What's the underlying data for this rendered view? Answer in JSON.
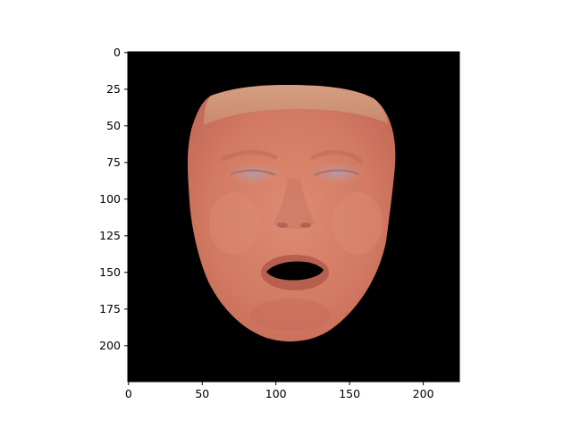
{
  "figure": {
    "type": "image-display",
    "description_free": true,
    "x_axis": {
      "label": "",
      "range": [
        0,
        224
      ],
      "ticks": [
        0,
        50,
        100,
        150,
        200
      ]
    },
    "y_axis": {
      "label": "",
      "range": [
        0,
        224
      ],
      "inverted": true,
      "ticks": [
        0,
        25,
        50,
        75,
        100,
        125,
        150,
        175,
        200
      ]
    },
    "image": {
      "subject": "cropped-face",
      "background_color": "#000000",
      "skin_color": "#d9826a",
      "hair_color": "#c9977a",
      "mouth_color": "#000000"
    },
    "colors": {
      "axis": "#000000",
      "page": "#ffffff"
    }
  }
}
